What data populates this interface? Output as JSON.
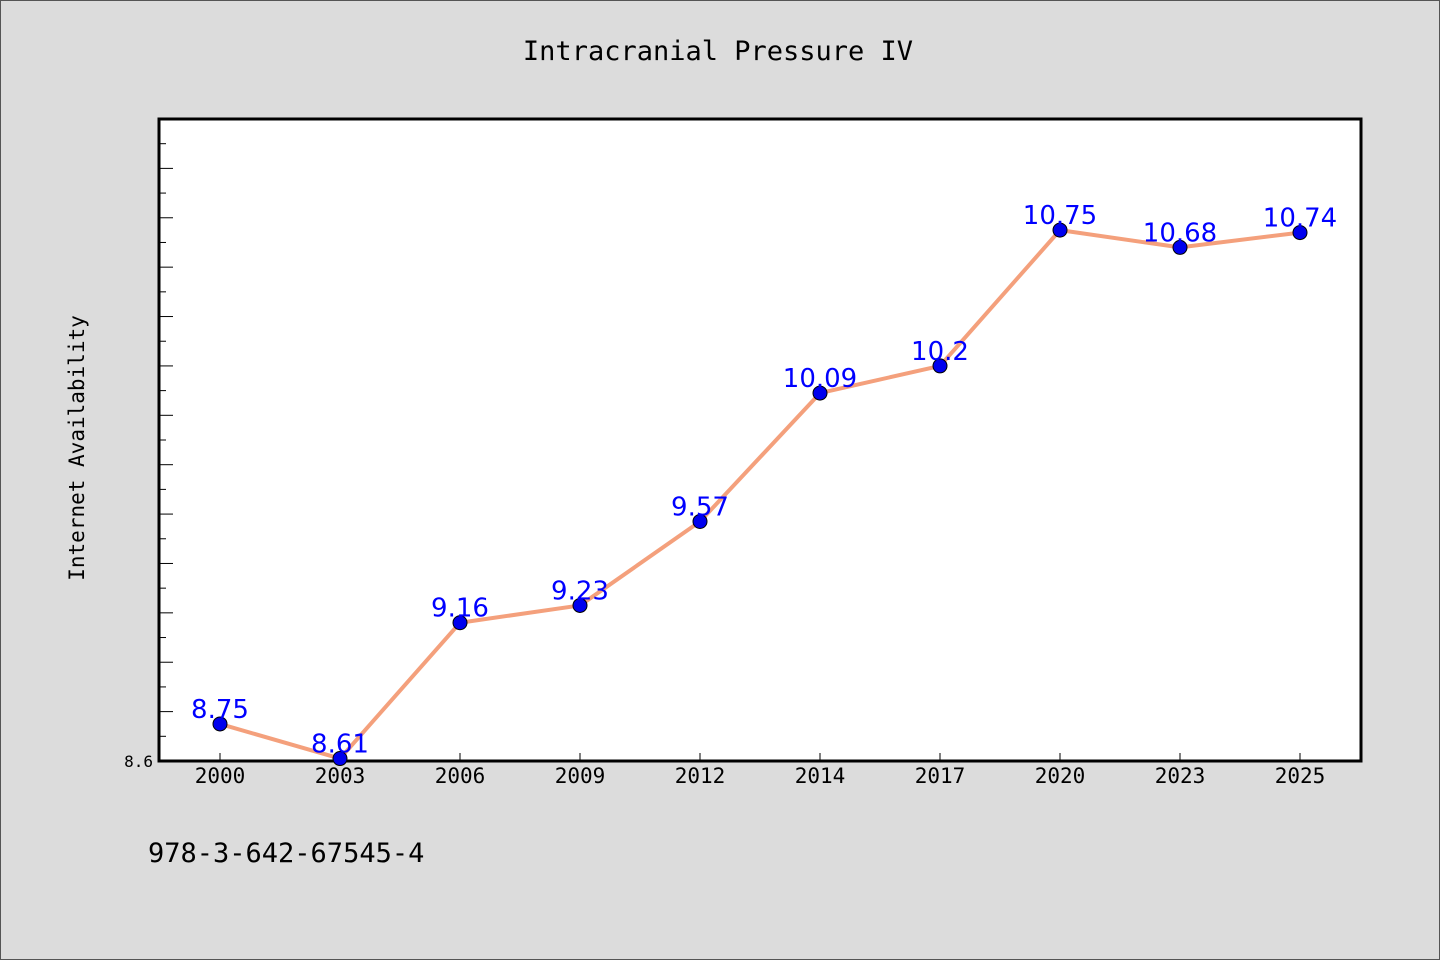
{
  "chart_data": {
    "type": "line",
    "title": "Intracranial Pressure IV",
    "xlabel": "",
    "ylabel": "Internet Availability",
    "categories": [
      "2000",
      "2003",
      "2006",
      "2009",
      "2012",
      "2014",
      "2017",
      "2020",
      "2023",
      "2025"
    ],
    "series": [
      {
        "values": [
          8.75,
          8.61,
          9.16,
          9.23,
          9.57,
          10.09,
          10.2,
          10.75,
          10.68,
          10.74
        ]
      }
    ],
    "data_labels": [
      "8.75",
      "8.61",
      "9.16",
      "9.23",
      "9.57",
      "10.09",
      "10.2",
      "10.75",
      "10.68",
      "10.74"
    ],
    "y_tick_labels": [
      "8.6"
    ],
    "ylim": [
      8.6,
      11.2
    ],
    "grid": false,
    "line_color": "#f4a07c",
    "marker_color": "#0000ee",
    "label_color": "#0000ff"
  },
  "footer_text": "978-3-642-67545-4",
  "colors": {
    "background": "#dcdcdc",
    "plot_background": "#ffffff",
    "axis": "#000000"
  }
}
